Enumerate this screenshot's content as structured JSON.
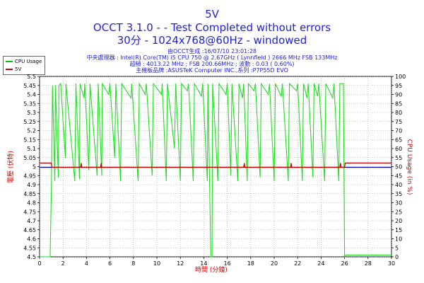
{
  "header": {
    "title": "5V",
    "subtitle": "OCCT 3.1.0 -  - Test Completed without errors",
    "subtitle2": "30分 - 1024x768@60Hz - windowed"
  },
  "info": {
    "line1": "由OCCT生成 :16/07/10 23:01:28",
    "line2": "中央處理器 : Intel(R) Core(TM) i5 CPU 750 @ 2.67GHz ( Lynnfield ) 2666 MHz FSB 133MHz",
    "line3": "超頻 : 4013.22 MHz ; FSB 200.66MHz ; 波動 : 0.03 ( 0.60%)",
    "line4": "主機板品牌 :ASUSTeK Computer INC.,系列 :P7P55D EVO"
  },
  "legend": {
    "items": [
      {
        "label": "CPU Usage",
        "color": "#00cc00"
      },
      {
        "label": "5V",
        "color": "#cc0000"
      }
    ]
  },
  "colors": {
    "title": "#2222dd",
    "cpu_line": "#22dd22",
    "voltage_line": "#cc0000",
    "avg_line": "#0000cc",
    "left_axis_label": "#cc0000",
    "right_axis_label": "#cc0000",
    "x_axis_label": "#cc0000"
  },
  "chart_data": {
    "type": "line",
    "xlabel": "時間 (分鐘)",
    "ylabel": "電壓 (伏特)",
    "y2label": "CPU Usage (in %)",
    "xlim": [
      0,
      30
    ],
    "ylim": [
      4.5,
      5.5
    ],
    "y2lim": [
      0,
      100
    ],
    "xticks": [
      0,
      2,
      4,
      6,
      8,
      10,
      12,
      14,
      16,
      18,
      20,
      22,
      24,
      26,
      28,
      30
    ],
    "yticks": [
      4.5,
      4.55,
      4.6,
      4.65,
      4.7,
      4.75,
      4.8,
      4.85,
      4.9,
      4.95,
      5,
      5.05,
      5.1,
      5.15,
      5.2,
      5.25,
      5.3,
      5.35,
      5.4,
      5.45,
      5.5
    ],
    "y2ticks": [
      0,
      5,
      10,
      15,
      20,
      25,
      30,
      35,
      40,
      45,
      50,
      55,
      60,
      65,
      70,
      75,
      80,
      85,
      90,
      95,
      100
    ],
    "grid": true,
    "legend_position": "top-left",
    "series": [
      {
        "name": "5V",
        "axis": "left",
        "points": [
          [
            0,
            5.02
          ],
          [
            1.0,
            5.02
          ],
          [
            1.05,
            4.996
          ],
          [
            3.5,
            4.996
          ],
          [
            3.55,
            5.02
          ],
          [
            3.6,
            4.996
          ],
          [
            5.2,
            4.996
          ],
          [
            5.25,
            5.02
          ],
          [
            5.3,
            4.996
          ],
          [
            17.4,
            4.996
          ],
          [
            17.45,
            5.02
          ],
          [
            17.5,
            4.996
          ],
          [
            21.4,
            4.996
          ],
          [
            21.45,
            5.02
          ],
          [
            21.5,
            4.996
          ],
          [
            25.6,
            4.996
          ],
          [
            25.65,
            5.02
          ],
          [
            25.7,
            4.996
          ],
          [
            26.0,
            4.996
          ],
          [
            26.05,
            5.02
          ],
          [
            30,
            5.02
          ]
        ]
      },
      {
        "name": "5V average",
        "axis": "left",
        "points": [
          [
            0,
            4.996
          ],
          [
            30,
            4.996
          ]
        ]
      },
      {
        "name": "CPU Usage",
        "axis": "right",
        "points": [
          [
            0,
            0
          ],
          [
            0.9,
            0
          ],
          [
            1.0,
            35
          ],
          [
            1.1,
            95
          ],
          [
            1.3,
            42
          ],
          [
            1.35,
            95
          ],
          [
            1.6,
            44
          ],
          [
            1.65,
            95
          ],
          [
            1.8,
            96
          ],
          [
            2.2,
            55
          ],
          [
            2.25,
            96
          ],
          [
            3.0,
            42
          ],
          [
            3.1,
            96
          ],
          [
            3.4,
            43
          ],
          [
            3.45,
            96
          ],
          [
            3.8,
            88
          ],
          [
            3.85,
            96
          ],
          [
            4.2,
            48
          ],
          [
            4.3,
            96
          ],
          [
            4.9,
            45
          ],
          [
            5.0,
            96
          ],
          [
            5.3,
            45
          ],
          [
            5.35,
            96
          ],
          [
            5.9,
            90
          ],
          [
            6.0,
            96
          ],
          [
            6.4,
            55
          ],
          [
            6.5,
            96
          ],
          [
            6.9,
            42
          ],
          [
            7.0,
            96
          ],
          [
            7.8,
            88
          ],
          [
            7.85,
            96
          ],
          [
            8.4,
            42
          ],
          [
            8.5,
            96
          ],
          [
            9.0,
            90
          ],
          [
            9.1,
            96
          ],
          [
            9.6,
            45
          ],
          [
            9.7,
            96
          ],
          [
            10.4,
            90
          ],
          [
            10.45,
            96
          ],
          [
            10.8,
            42
          ],
          [
            10.9,
            96
          ],
          [
            11.5,
            60
          ],
          [
            11.6,
            96
          ],
          [
            12.0,
            42
          ],
          [
            12.1,
            96
          ],
          [
            12.6,
            92
          ],
          [
            12.7,
            96
          ],
          [
            13.1,
            42
          ],
          [
            13.2,
            96
          ],
          [
            13.8,
            89
          ],
          [
            13.9,
            96
          ],
          [
            14.3,
            42
          ],
          [
            14.35,
            96
          ],
          [
            14.6,
            0
          ],
          [
            14.7,
            0
          ],
          [
            14.75,
            96
          ],
          [
            15.2,
            42
          ],
          [
            15.3,
            96
          ],
          [
            15.9,
            90
          ],
          [
            16.0,
            96
          ],
          [
            16.3,
            45
          ],
          [
            16.4,
            96
          ],
          [
            16.9,
            42
          ],
          [
            17.0,
            96
          ],
          [
            17.3,
            88
          ],
          [
            17.4,
            96
          ],
          [
            17.7,
            42
          ],
          [
            17.8,
            96
          ],
          [
            18.3,
            92
          ],
          [
            18.4,
            96
          ],
          [
            18.8,
            44
          ],
          [
            18.9,
            96
          ],
          [
            19.5,
            90
          ],
          [
            19.6,
            96
          ],
          [
            20.0,
            42
          ],
          [
            20.1,
            96
          ],
          [
            20.6,
            89
          ],
          [
            20.7,
            96
          ],
          [
            21.2,
            42
          ],
          [
            21.3,
            96
          ],
          [
            21.9,
            92
          ],
          [
            22.0,
            96
          ],
          [
            22.4,
            42
          ],
          [
            22.5,
            96
          ],
          [
            22.8,
            88
          ],
          [
            22.9,
            96
          ],
          [
            23.3,
            44
          ],
          [
            23.4,
            96
          ],
          [
            23.7,
            89
          ],
          [
            23.8,
            96
          ],
          [
            24.3,
            42
          ],
          [
            24.4,
            96
          ],
          [
            25.0,
            88
          ],
          [
            25.1,
            96
          ],
          [
            25.5,
            42
          ],
          [
            25.6,
            96
          ],
          [
            25.9,
            96
          ],
          [
            26.0,
            0
          ],
          [
            26.05,
            0
          ],
          [
            26.1,
            1
          ],
          [
            30,
            1
          ]
        ]
      }
    ]
  }
}
